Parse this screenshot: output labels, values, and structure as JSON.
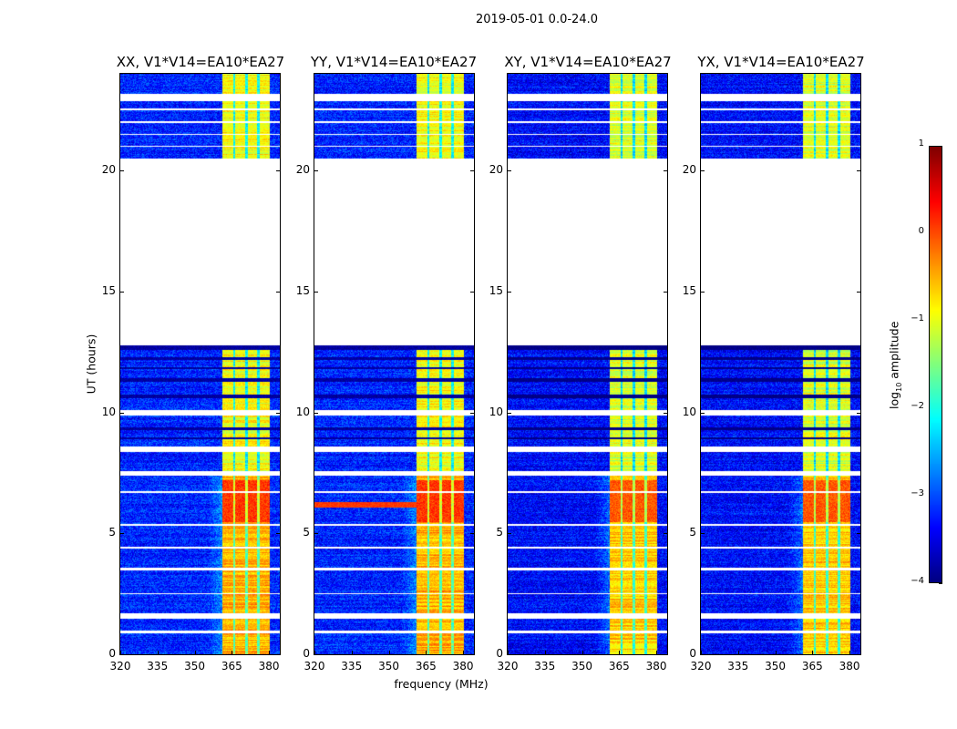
{
  "chart_data": {
    "type": "heatmap",
    "title": "2019-05-01 0.0-24.0",
    "panels": [
      {
        "title": "XX, V1*V14=EA10*EA27",
        "pol": "XX"
      },
      {
        "title": "YY, V1*V14=EA10*EA27",
        "pol": "YY"
      },
      {
        "title": "XY, V1*V14=EA10*EA27",
        "pol": "XY"
      },
      {
        "title": "YX, V1*V14=EA10*EA27",
        "pol": "YX"
      }
    ],
    "xlabel": "frequency (MHz)",
    "ylabel": "UT (hours)",
    "xlim": [
      320,
      384.4
    ],
    "ylim": [
      0,
      24
    ],
    "xticks": [
      "320",
      "335",
      "350",
      "365",
      "380"
    ],
    "yticks": [
      "0",
      "5",
      "10",
      "15",
      "20"
    ],
    "colorbar": {
      "label": "log10 amplitude",
      "label_main": "log",
      "label_sub": "10",
      "label_rest": " amplitude",
      "range": [
        -4,
        1
      ],
      "ticks": [
        "1",
        "0",
        "−1",
        "−2",
        "−3",
        "−4"
      ],
      "colormap": "jet"
    },
    "background_level": -3.2,
    "bright_band_mhz": [
      361,
      380
    ],
    "band_level": -0.9,
    "band_dark_lines_mhz": [
      365.8,
      370.9,
      375.6
    ],
    "strong_rfi_hours": [
      5.5,
      7.2
    ],
    "strong_rfi_level": 0.1,
    "flagged_hours": [
      [
        12.8,
        20.5
      ],
      [
        22.9,
        23.2
      ],
      [
        22.5,
        22.6
      ],
      [
        7.4,
        7.6
      ],
      [
        8.4,
        8.6
      ],
      [
        1.5,
        1.7
      ],
      [
        0.9,
        1.0
      ],
      [
        9.9,
        10.1
      ],
      [
        3.5,
        3.6
      ],
      [
        2.5,
        2.55
      ],
      [
        4.4,
        4.45
      ],
      [
        5.35,
        5.4
      ],
      [
        6.7,
        6.75
      ],
      [
        21.0,
        21.05
      ],
      [
        21.5,
        21.55
      ],
      [
        22.0,
        22.05
      ]
    ],
    "dark_rows_hours": [
      [
        10.6,
        10.75
      ],
      [
        11.3,
        11.45
      ],
      [
        11.8,
        11.9
      ],
      [
        12.2,
        12.3
      ],
      [
        12.6,
        12.8
      ],
      [
        8.9,
        9.0
      ],
      [
        9.3,
        9.4
      ]
    ]
  }
}
